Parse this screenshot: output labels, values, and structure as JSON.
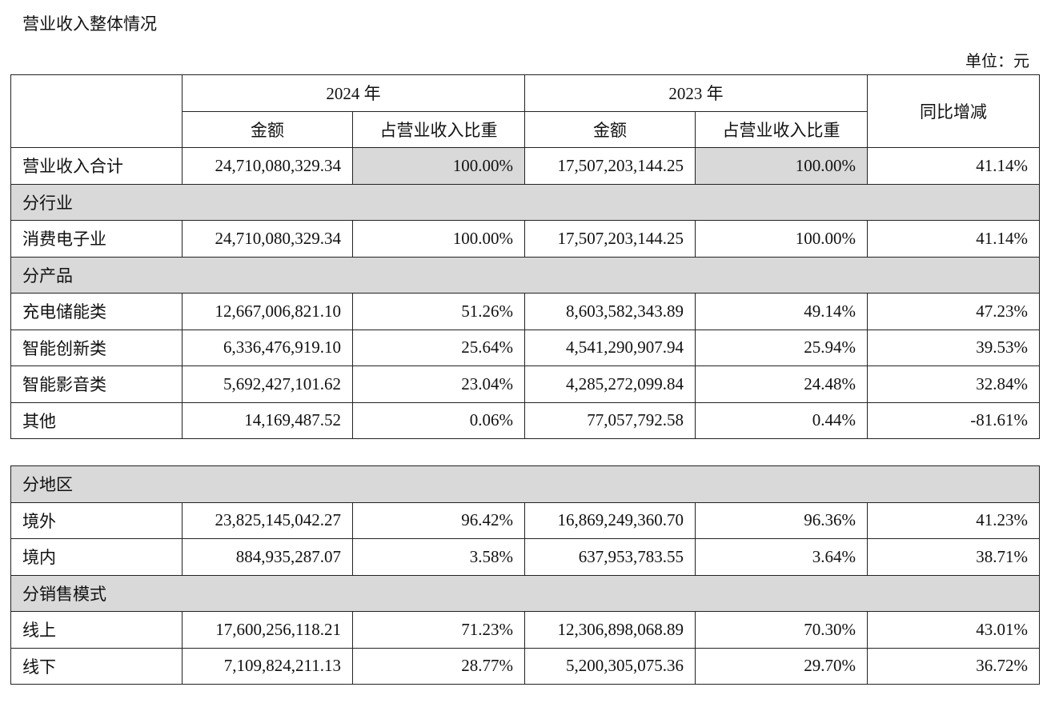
{
  "title": "营业收入整体情况",
  "unit": "单位：元",
  "header": {
    "year1": "2024 年",
    "year2": "2023 年",
    "amount": "金额",
    "share": "占营业收入比重",
    "yoy": "同比增减"
  },
  "rows": [
    {
      "label": "营业收入合计",
      "a24": "24,710,080,329.34",
      "s24": "100.00%",
      "a23": "17,507,203,144.25",
      "s23": "100.00%",
      "yoy": "41.14%"
    },
    {
      "section": "分行业"
    },
    {
      "label": "消费电子业",
      "a24": "24,710,080,329.34",
      "s24": "100.00%",
      "a23": "17,507,203,144.25",
      "s23": "100.00%",
      "yoy": "41.14%"
    },
    {
      "section": "分产品"
    },
    {
      "label": "充电储能类",
      "a24": "12,667,006,821.10",
      "s24": "51.26%",
      "a23": "8,603,582,343.89",
      "s23": "49.14%",
      "yoy": "47.23%"
    },
    {
      "label": "智能创新类",
      "a24": "6,336,476,919.10",
      "s24": "25.64%",
      "a23": "4,541,290,907.94",
      "s23": "25.94%",
      "yoy": "39.53%"
    },
    {
      "label": "智能影音类",
      "a24": "5,692,427,101.62",
      "s24": "23.04%",
      "a23": "4,285,272,099.84",
      "s23": "24.48%",
      "yoy": "32.84%"
    },
    {
      "label": "其他",
      "a24": "14,169,487.52",
      "s24": "0.06%",
      "a23": "77,057,792.58",
      "s23": "0.44%",
      "yoy": "-81.61%"
    }
  ],
  "rows2": [
    {
      "section": "分地区"
    },
    {
      "label": "境外",
      "a24": "23,825,145,042.27",
      "s24": "96.42%",
      "a23": "16,869,249,360.70",
      "s23": "96.36%",
      "yoy": "41.23%"
    },
    {
      "label": "境内",
      "a24": "884,935,287.07",
      "s24": "3.58%",
      "a23": "637,953,783.55",
      "s23": "3.64%",
      "yoy": "38.71%"
    },
    {
      "section": "分销售模式"
    },
    {
      "label": "线上",
      "a24": "17,600,256,118.21",
      "s24": "71.23%",
      "a23": "12,306,898,068.89",
      "s23": "70.30%",
      "yoy": "43.01%"
    },
    {
      "label": "线下",
      "a24": "7,109,824,211.13",
      "s24": "28.77%",
      "a23": "5,200,305,075.36",
      "s23": "29.70%",
      "yoy": "36.72%"
    }
  ]
}
